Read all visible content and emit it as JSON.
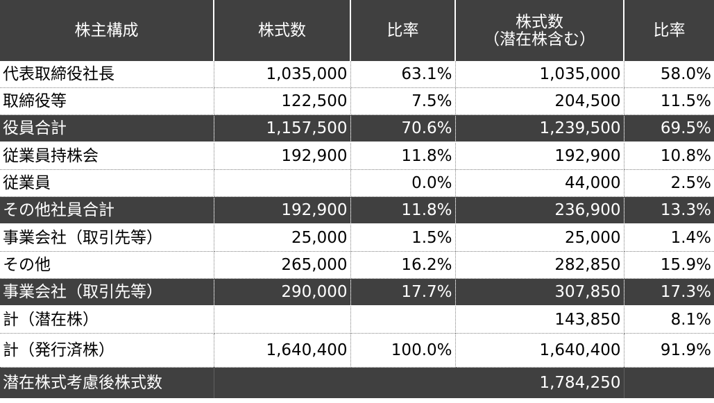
{
  "headers": {
    "composition": "株主構成",
    "shares": "株式数",
    "ratio": "比率",
    "shares_diluted_line1": "株式数",
    "shares_diluted_line2": "（潜在株含む）",
    "ratio_diluted": "比率"
  },
  "rows": [
    {
      "label": "代表取締役社長",
      "shares": "1,035,000",
      "ratio": "63.1%",
      "shares_diluted": "1,035,000",
      "ratio_diluted": "58.0%"
    },
    {
      "label": "取締役等",
      "shares": "122,500",
      "ratio": "7.5%",
      "shares_diluted": "204,500",
      "ratio_diluted": "11.5%"
    },
    {
      "label": "役員合計",
      "shares": "1,157,500",
      "ratio": "70.6%",
      "shares_diluted": "1,239,500",
      "ratio_diluted": "69.5%"
    },
    {
      "label": "従業員持株会",
      "shares": "192,900",
      "ratio": "11.8%",
      "shares_diluted": "192,900",
      "ratio_diluted": "10.8%"
    },
    {
      "label": "従業員",
      "shares": "",
      "ratio": "0.0%",
      "shares_diluted": "44,000",
      "ratio_diluted": "2.5%"
    },
    {
      "label": "その他社員合計",
      "shares": "192,900",
      "ratio": "11.8%",
      "shares_diluted": "236,900",
      "ratio_diluted": "13.3%"
    },
    {
      "label": "事業会社（取引先等）",
      "shares": "25,000",
      "ratio": "1.5%",
      "shares_diluted": "25,000",
      "ratio_diluted": "1.4%"
    },
    {
      "label": "その他",
      "shares": "265,000",
      "ratio": "16.2%",
      "shares_diluted": "282,850",
      "ratio_diluted": "15.9%"
    },
    {
      "label": "事業会社（取引先等）",
      "shares": "290,000",
      "ratio": "17.7%",
      "shares_diluted": "307,850",
      "ratio_diluted": "17.3%"
    },
    {
      "label": "計（潜在株）",
      "shares": "",
      "ratio": "",
      "shares_diluted": "143,850",
      "ratio_diluted": "8.1%"
    },
    {
      "label": "計（発行済株）",
      "shares": "1,640,400",
      "ratio": "100.0%",
      "shares_diluted": "1,640,400",
      "ratio_diluted": "91.9%"
    }
  ],
  "final": {
    "label": "潜在株式考慮後株式数",
    "value": "1,784,250"
  },
  "colors": {
    "header_bg": "#404040",
    "header_text": "#ffffff",
    "grid_dotted": "#7f7f7f"
  }
}
